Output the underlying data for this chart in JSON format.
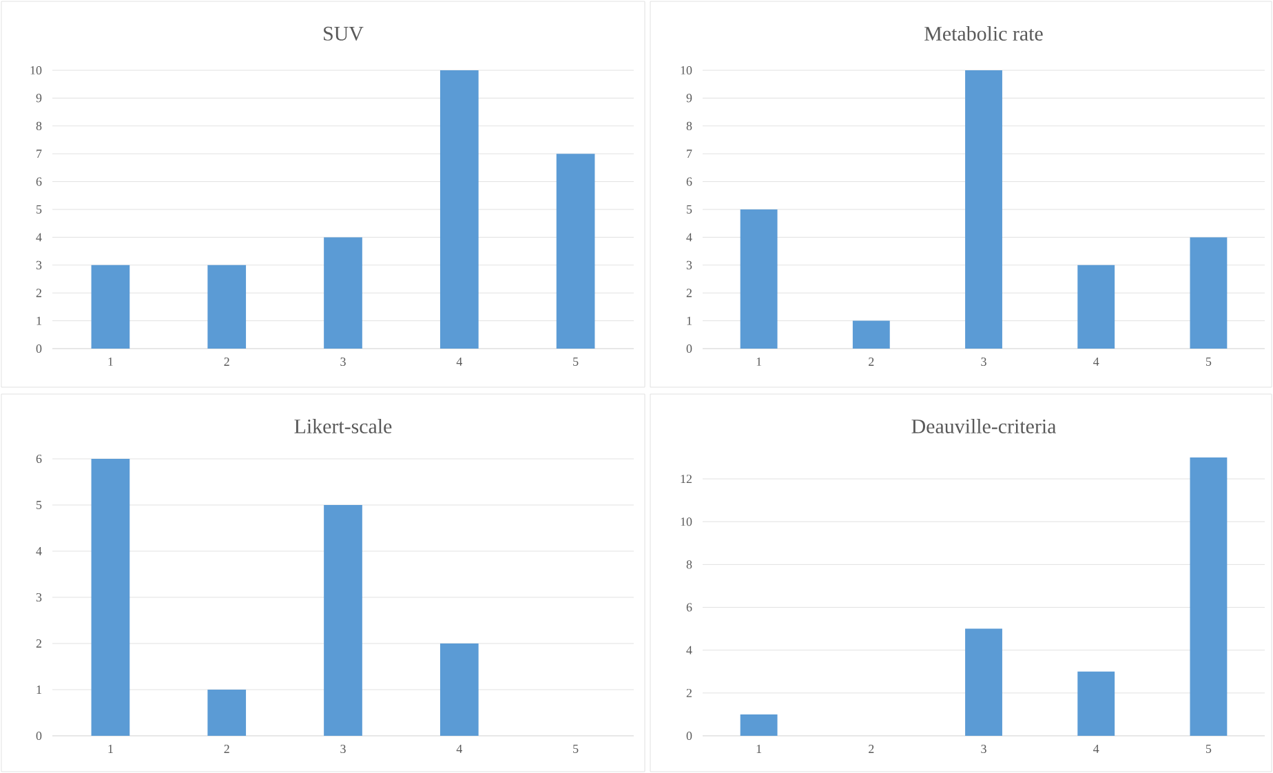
{
  "chart_data": [
    {
      "type": "bar",
      "title": "SUV",
      "categories": [
        "1",
        "2",
        "3",
        "4",
        "5"
      ],
      "values": [
        3,
        3,
        4,
        10,
        7
      ],
      "color": "#5b9bd5",
      "ylim": [
        0,
        10
      ],
      "yticks": [
        0,
        1,
        2,
        3,
        4,
        5,
        6,
        7,
        8,
        9,
        10
      ],
      "grid": "y"
    },
    {
      "type": "bar",
      "title": "Metabolic rate",
      "categories": [
        "1",
        "2",
        "3",
        "4",
        "5"
      ],
      "values": [
        5,
        1,
        10,
        3,
        4
      ],
      "color": "#5b9bd5",
      "ylim": [
        0,
        10
      ],
      "yticks": [
        0,
        1,
        2,
        3,
        4,
        5,
        6,
        7,
        8,
        9,
        10
      ],
      "grid": "y"
    },
    {
      "type": "bar",
      "title": "Likert-scale",
      "categories": [
        "1",
        "2",
        "3",
        "4",
        "5"
      ],
      "values": [
        6,
        1,
        5,
        2,
        0
      ],
      "color": "#5b9bd5",
      "ylim": [
        0,
        6
      ],
      "yticks": [
        0,
        1,
        2,
        3,
        4,
        5,
        6
      ],
      "grid": "y"
    },
    {
      "type": "bar",
      "title": "Deauville-criteria",
      "categories": [
        "1",
        "2",
        "3",
        "4",
        "5"
      ],
      "values": [
        1,
        0,
        5,
        3,
        13
      ],
      "color": "#5b9bd5",
      "ylim": [
        0,
        13
      ],
      "yticks": [
        0,
        2,
        4,
        6,
        8,
        10,
        12
      ],
      "grid": "y"
    }
  ]
}
